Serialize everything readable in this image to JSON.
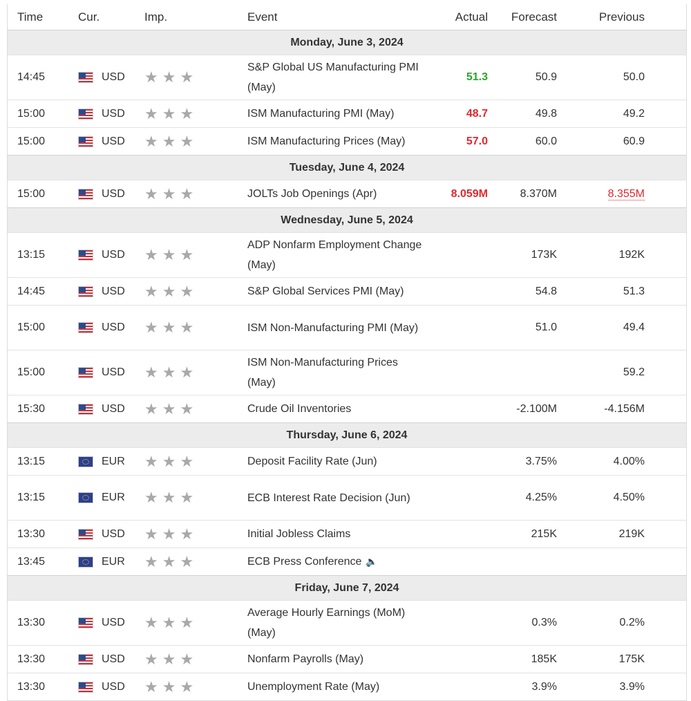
{
  "columns": {
    "time": "Time",
    "currency": "Cur.",
    "importance": "Imp.",
    "event": "Event",
    "actual": "Actual",
    "forecast": "Forecast",
    "previous": "Previous"
  },
  "days": [
    {
      "label": "Monday, June 3, 2024",
      "events": [
        {
          "time": "14:45",
          "flag": "us-flag-icon",
          "currency": "USD",
          "event": "S&P Global US Manufacturing PMI (May)",
          "actual": "51.3",
          "actual_color": "#2aa52a",
          "forecast": "50.9",
          "previous": "50.0"
        },
        {
          "time": "15:00",
          "flag": "us-flag-icon",
          "currency": "USD",
          "event": "ISM Manufacturing PMI (May)",
          "actual": "48.7",
          "actual_color": "#e0282f",
          "forecast": "49.8",
          "previous": "49.2"
        },
        {
          "time": "15:00",
          "flag": "us-flag-icon",
          "currency": "USD",
          "event": "ISM Manufacturing Prices (May)",
          "actual": "57.0",
          "actual_color": "#e0282f",
          "forecast": "60.0",
          "previous": "60.9"
        }
      ]
    },
    {
      "label": "Tuesday, June 4, 2024",
      "events": [
        {
          "time": "15:00",
          "flag": "us-flag-icon",
          "currency": "USD",
          "event": "JOLTs Job Openings (Apr)",
          "actual": "8.059M",
          "actual_color": "#e0282f",
          "forecast": "8.370M",
          "previous": "8.355M",
          "previous_color": "#e0282f"
        }
      ]
    },
    {
      "label": "Wednesday, June 5, 2024",
      "events": [
        {
          "time": "13:15",
          "flag": "us-flag-icon",
          "currency": "USD",
          "event": "ADP Nonfarm Employment Change (May)",
          "actual": "",
          "forecast": "173K",
          "previous": "192K"
        },
        {
          "time": "14:45",
          "flag": "us-flag-icon",
          "currency": "USD",
          "event": "S&P Global Services PMI (May)",
          "actual": "",
          "forecast": "54.8",
          "previous": "51.3"
        },
        {
          "time": "15:00",
          "flag": "us-flag-icon",
          "currency": "USD",
          "event": "ISM Non-Manufacturing PMI (May)",
          "actual": "",
          "forecast": "51.0",
          "previous": "49.4"
        },
        {
          "time": "15:00",
          "flag": "us-flag-icon",
          "currency": "USD",
          "event": "ISM Non-Manufacturing Prices (May)",
          "actual": "",
          "forecast": "",
          "previous": "59.2"
        },
        {
          "time": "15:30",
          "flag": "us-flag-icon",
          "currency": "USD",
          "event": "Crude Oil Inventories",
          "actual": "",
          "forecast": "-2.100M",
          "previous": "-4.156M"
        }
      ]
    },
    {
      "label": "Thursday, June 6, 2024",
      "events": [
        {
          "time": "13:15",
          "flag": "eu-flag-icon",
          "currency": "EUR",
          "event": "Deposit Facility Rate (Jun)",
          "actual": "",
          "forecast": "3.75%",
          "previous": "4.00%"
        },
        {
          "time": "13:15",
          "flag": "eu-flag-icon",
          "currency": "EUR",
          "event": "ECB Interest Rate Decision (Jun)",
          "actual": "",
          "forecast": "4.25%",
          "previous": "4.50%"
        },
        {
          "time": "13:30",
          "flag": "us-flag-icon",
          "currency": "USD",
          "event": "Initial Jobless Claims",
          "actual": "",
          "forecast": "215K",
          "previous": "219K"
        },
        {
          "time": "13:45",
          "flag": "eu-flag-icon",
          "currency": "EUR",
          "event": "ECB Press Conference",
          "actual": "",
          "forecast": "",
          "previous": "",
          "speaker_icon": "speaker-icon"
        }
      ]
    },
    {
      "label": "Friday, June 7, 2024",
      "events": [
        {
          "time": "13:30",
          "flag": "us-flag-icon",
          "currency": "USD",
          "event": "Average Hourly Earnings (MoM) (May)",
          "actual": "",
          "forecast": "0.3%",
          "previous": "0.2%"
        },
        {
          "time": "13:30",
          "flag": "us-flag-icon",
          "currency": "USD",
          "event": "Nonfarm Payrolls (May)",
          "actual": "",
          "forecast": "185K",
          "previous": "175K"
        },
        {
          "time": "13:30",
          "flag": "us-flag-icon",
          "currency": "USD",
          "event": "Unemployment Rate (May)",
          "actual": "",
          "forecast": "3.9%",
          "previous": "3.9%"
        }
      ]
    }
  ],
  "importance_icon": "star-icon",
  "importance_stars": 3
}
